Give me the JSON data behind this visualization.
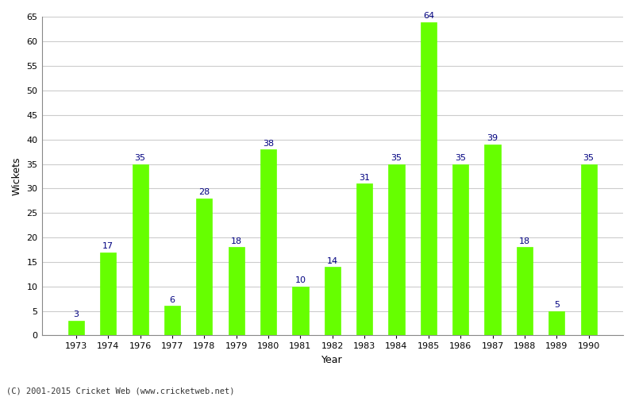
{
  "years": [
    "1973",
    "1974",
    "1976",
    "1977",
    "1978",
    "1979",
    "1980",
    "1981",
    "1982",
    "1983",
    "1984",
    "1985",
    "1986",
    "1987",
    "1988",
    "1989",
    "1990"
  ],
  "values": [
    3,
    17,
    35,
    6,
    28,
    18,
    38,
    10,
    14,
    31,
    35,
    64,
    35,
    39,
    18,
    5,
    35
  ],
  "bar_color": "#66ff00",
  "label_color": "#000080",
  "xlabel": "Year",
  "ylabel": "Wickets",
  "ylim": [
    0,
    65
  ],
  "yticks": [
    0,
    5,
    10,
    15,
    20,
    25,
    30,
    35,
    40,
    45,
    50,
    55,
    60,
    65
  ],
  "background_color": "#ffffff",
  "grid_color": "#cccccc",
  "footer": "(C) 2001-2015 Cricket Web (www.cricketweb.net)",
  "label_fontsize": 8,
  "axis_label_fontsize": 9,
  "bar_width": 0.5
}
